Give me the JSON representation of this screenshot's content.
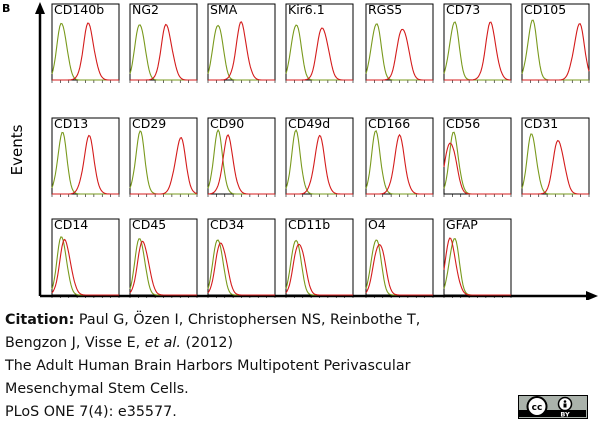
{
  "panel_label": "B",
  "y_axis_label": "Events",
  "panels": [
    [
      {
        "label": "CD140b"
      },
      {
        "label": "NG2"
      },
      {
        "label": "SMA"
      },
      {
        "label": "Kir6.1"
      },
      {
        "label": "RGS5"
      },
      {
        "label": "CD73"
      },
      {
        "label": "CD105"
      }
    ],
    [
      {
        "label": "CD13"
      },
      {
        "label": "CD29"
      },
      {
        "label": "CD90"
      },
      {
        "label": "CD49d"
      },
      {
        "label": "CD166"
      },
      {
        "label": "CD56"
      },
      {
        "label": "CD31"
      }
    ],
    [
      {
        "label": "CD14"
      },
      {
        "label": "CD45"
      },
      {
        "label": "CD34"
      },
      {
        "label": "CD11b"
      },
      {
        "label": "O4"
      },
      {
        "label": "GFAP"
      }
    ]
  ],
  "citation": {
    "label": "Citation:",
    "line1": "Paul G, Özen I, Christophersen NS, Reinbothe T,",
    "line2": "Bengzon J, Visse E,",
    "et_al": "et al.",
    "year": "(2012)",
    "title_line1": "The Adult Human Brain Harbors Multipotent Perivascular",
    "title_line2": "Mesenchymal Stem Cells.",
    "journal": "PLoS ONE 7(4): e35577."
  },
  "license": {
    "cc": "cc",
    "by": "BY"
  }
}
